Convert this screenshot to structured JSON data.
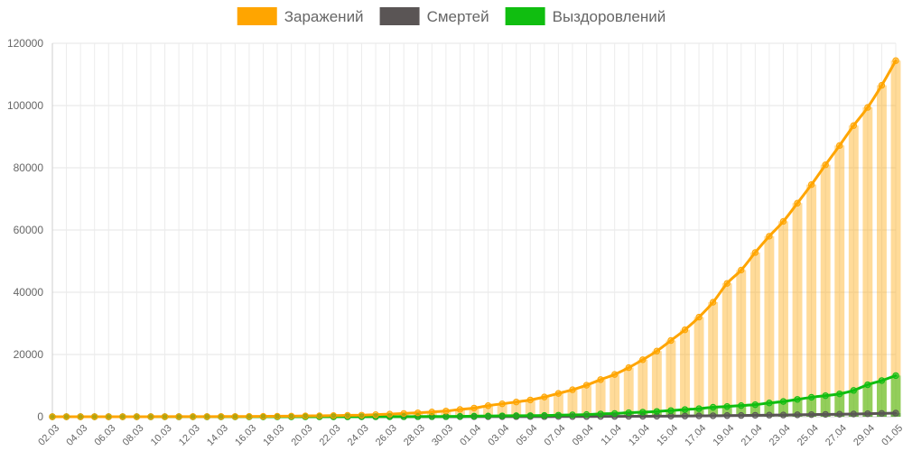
{
  "chart_data": {
    "type": "line",
    "title": "",
    "xlabel": "",
    "ylabel": "",
    "legend_position": "top-center",
    "grid": true,
    "ylim": [
      0,
      120000
    ],
    "y_ticks": [
      0,
      20000,
      40000,
      60000,
      80000,
      100000,
      120000
    ],
    "categories": [
      "02.03",
      "03.03",
      "04.03",
      "05.03",
      "06.03",
      "07.03",
      "08.03",
      "09.03",
      "10.03",
      "11.03",
      "12.03",
      "13.03",
      "14.03",
      "15.03",
      "16.03",
      "17.03",
      "18.03",
      "19.03",
      "20.03",
      "21.03",
      "22.03",
      "23.03",
      "24.03",
      "25.03",
      "26.03",
      "27.03",
      "28.03",
      "29.03",
      "30.03",
      "31.03",
      "01.04",
      "02.04",
      "03.04",
      "04.04",
      "05.04",
      "06.04",
      "07.04",
      "08.04",
      "09.04",
      "10.04",
      "11.04",
      "12.04",
      "13.04",
      "14.04",
      "15.04",
      "16.04",
      "17.04",
      "18.04",
      "19.04",
      "20.04",
      "21.04",
      "22.04",
      "23.04",
      "24.04",
      "25.04",
      "26.04",
      "27.04",
      "28.04",
      "29.04",
      "30.04",
      "01.05"
    ],
    "x_tick_labels": [
      "02.03",
      "04.03",
      "06.03",
      "08.03",
      "10.03",
      "12.03",
      "14.03",
      "16.03",
      "18.03",
      "20.03",
      "22.03",
      "24.03",
      "26.03",
      "28.03",
      "30.03",
      "01.04",
      "03.04",
      "05.04",
      "07.04",
      "09.04",
      "11.04",
      "13.04",
      "15.04",
      "17.04",
      "19.04",
      "21.04",
      "23.04",
      "25.04",
      "27.04",
      "29.04",
      "01.05"
    ],
    "series": [
      {
        "name": "Заражений",
        "color": "#ffa500",
        "values": [
          3,
          3,
          3,
          3,
          5,
          10,
          13,
          17,
          20,
          28,
          34,
          45,
          59,
          63,
          90,
          114,
          147,
          199,
          253,
          306,
          367,
          438,
          495,
          658,
          840,
          1036,
          1264,
          1534,
          1836,
          2337,
          2777,
          3548,
          4149,
          4731,
          5389,
          6343,
          7497,
          8672,
          10131,
          11917,
          13584,
          15770,
          18328,
          21102,
          24490,
          27938,
          32008,
          36793,
          42853,
          47121,
          52763,
          57999,
          62773,
          68622,
          74588,
          80949,
          87147,
          93558,
          99399,
          106498,
          114431
        ]
      },
      {
        "name": "Смертей",
        "color": "#5a5555",
        "values": [
          0,
          0,
          0,
          0,
          0,
          0,
          0,
          0,
          0,
          0,
          0,
          0,
          0,
          0,
          0,
          0,
          1,
          1,
          1,
          1,
          1,
          1,
          1,
          3,
          3,
          4,
          4,
          8,
          9,
          17,
          24,
          30,
          34,
          43,
          45,
          47,
          58,
          63,
          76,
          94,
          106,
          130,
          148,
          170,
          198,
          232,
          273,
          313,
          361,
          405,
          456,
          513,
          555,
          615,
          681,
          747,
          794,
          867,
          972,
          1073,
          1169
        ]
      },
      {
        "name": "Выздоровлений",
        "color": "#10be10",
        "values": [
          0,
          0,
          0,
          0,
          0,
          0,
          0,
          0,
          0,
          0,
          0,
          0,
          0,
          0,
          0,
          0,
          2,
          4,
          6,
          7,
          9,
          13,
          16,
          22,
          29,
          34,
          45,
          64,
          72,
          121,
          190,
          235,
          283,
          333,
          355,
          406,
          494,
          580,
          698,
          901,
          1045,
          1292,
          1470,
          1694,
          1986,
          2304,
          2590,
          3045,
          3291,
          3571,
          3873,
          4420,
          4891,
          5568,
          6250,
          6767,
          7346,
          8456,
          10286,
          11619,
          13220
        ]
      }
    ]
  }
}
